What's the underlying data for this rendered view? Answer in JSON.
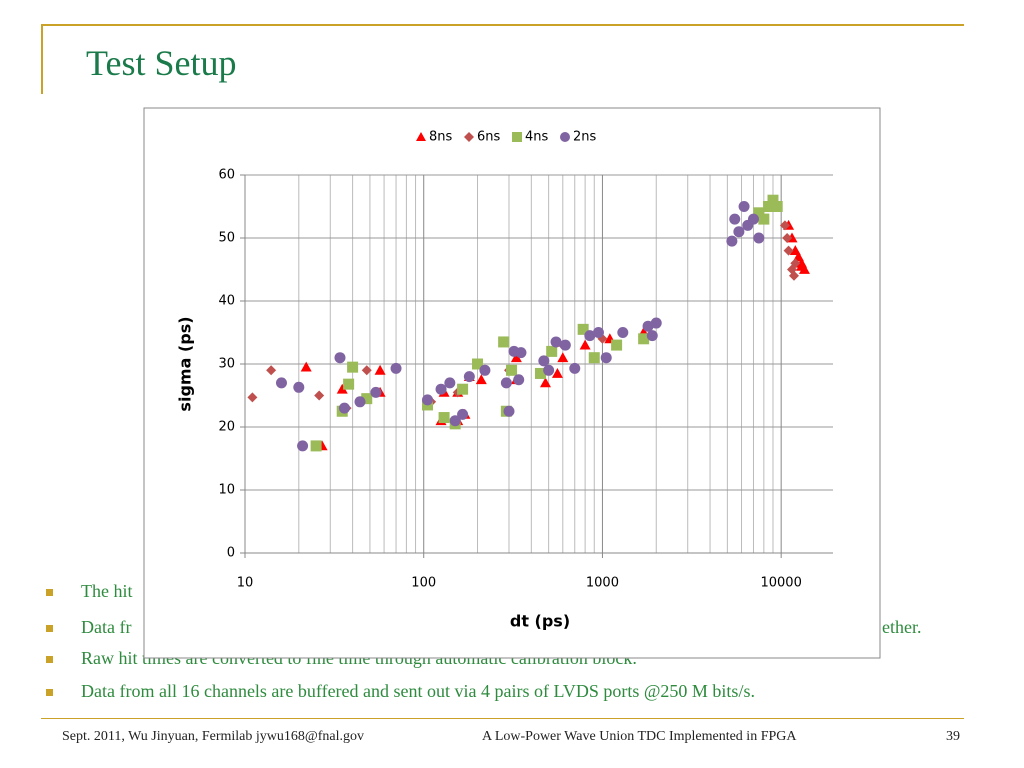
{
  "slide": {
    "title": "Test Setup",
    "bullets": [
      "The hit",
      "Data fr",
      "Raw hit times are converted to fine time through automatic calibration block.",
      "Data from all 16 channels are buffered and sent out via 4 pairs of LVDS ports @250 M bits/s."
    ],
    "bullet_tail": "ether.",
    "footer_left": "Sept. 2011, Wu Jinyuan, Fermilab jywu168@fnal.gov",
    "footer_center": "A Low-Power Wave Union TDC Implemented in FPGA",
    "page_number": "39"
  },
  "chart_data": {
    "type": "scatter",
    "x_label": "dt (ps)",
    "y_label": "sigma (ps)",
    "xlog": true,
    "grid": true,
    "minor_grid": true,
    "legend": "top",
    "xlim": [
      10,
      19500
    ],
    "xticks": [
      10,
      100,
      1000,
      10000
    ],
    "ylim": [
      0,
      60
    ],
    "yticks": [
      0,
      10,
      20,
      30,
      40,
      50,
      60
    ],
    "series": [
      {
        "name": "8ns",
        "color": "#ff0000",
        "marker": "triangle",
        "x": [
          22,
          27,
          35,
          57,
          57,
          125,
          155,
          170,
          130,
          155,
          210,
          180,
          330,
          330,
          480,
          560,
          600,
          800,
          1100,
          1700,
          11000,
          12000,
          13000,
          13500,
          12500,
          11500,
          13000
        ],
        "y": [
          29.5,
          17,
          26,
          29,
          25.5,
          21,
          21,
          22,
          25.5,
          25.5,
          27.5,
          28,
          27.5,
          31,
          27,
          28.5,
          31,
          33,
          34,
          35,
          52,
          48,
          46,
          45,
          47,
          50,
          45.5
        ]
      },
      {
        "name": "6ns",
        "color": "#c0504d",
        "marker": "diamond",
        "x": [
          11,
          14,
          26,
          37,
          48,
          155,
          110,
          300,
          600,
          1000,
          10500,
          11000,
          11500,
          11800,
          10800,
          12000
        ],
        "y": [
          24.7,
          29,
          25,
          23,
          29,
          25.5,
          24,
          29,
          33,
          34,
          52,
          48,
          45,
          44,
          50,
          46
        ]
      },
      {
        "name": "4ns",
        "color": "#9bbb59",
        "marker": "square",
        "x": [
          25,
          35,
          38,
          40,
          48,
          105,
          130,
          150,
          165,
          200,
          280,
          290,
          310,
          450,
          520,
          780,
          900,
          1200,
          1700,
          7500,
          8500,
          9000,
          8000,
          9500
        ],
        "y": [
          17,
          22.5,
          26.8,
          29.5,
          24.5,
          23.5,
          21.5,
          20.5,
          26,
          30,
          33.5,
          22.5,
          29,
          28.5,
          32,
          35.5,
          31,
          33,
          34,
          54,
          55,
          56,
          53,
          55
        ]
      },
      {
        "name": "2ns",
        "color": "#8064a2",
        "marker": "circle",
        "x": [
          16,
          20,
          21,
          34,
          36,
          44,
          54,
          70,
          105,
          125,
          140,
          150,
          165,
          180,
          220,
          290,
          300,
          320,
          340,
          350,
          470,
          500,
          550,
          620,
          700,
          850,
          950,
          1050,
          1300,
          1800,
          2000,
          1900,
          5300,
          5500,
          6200,
          6500,
          7500,
          7000,
          5800
        ],
        "y": [
          27,
          26.3,
          17,
          31,
          23,
          24,
          25.5,
          29.3,
          24.3,
          26,
          27,
          21,
          22,
          28,
          29,
          27,
          22.5,
          32,
          27.5,
          31.8,
          30.5,
          29,
          33.5,
          33,
          29.3,
          34.5,
          35,
          31,
          35,
          36,
          36.5,
          34.5,
          49.5,
          53,
          55,
          52,
          50,
          53,
          51
        ]
      }
    ]
  }
}
